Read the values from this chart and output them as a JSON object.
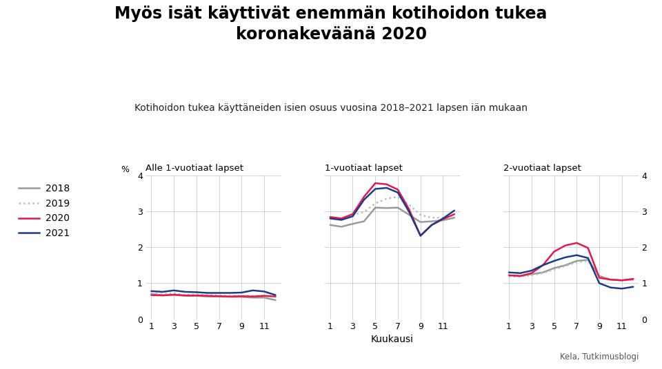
{
  "title": "Myös isät käyttivät enemmän kotihoidon tukea\nkoronakeväänä 2020",
  "subtitle": "Kotihoidon tukea käyttäneiden isien osuus vuosina 2018–2021 lapsen iän mukaan",
  "xlabel": "Kuukausi",
  "ylabel": "%",
  "source": "Kela, Tutkimusblogi",
  "months": [
    1,
    2,
    3,
    4,
    5,
    6,
    7,
    8,
    9,
    10,
    11,
    12
  ],
  "panel_titles": [
    "Alle 1-vuotiaat lapset",
    "1-vuotiaat lapset",
    "2-vuotiaat lapset"
  ],
  "ylim": [
    0,
    4
  ],
  "yticks": [
    0,
    1,
    2,
    3,
    4
  ],
  "panel1": {
    "y2018": [
      0.7,
      0.67,
      0.68,
      0.65,
      0.65,
      0.63,
      0.63,
      0.62,
      0.62,
      0.6,
      0.6,
      0.53
    ],
    "y2019": [
      0.72,
      0.7,
      0.72,
      0.68,
      0.68,
      0.67,
      0.66,
      0.65,
      0.65,
      0.65,
      0.65,
      0.62
    ],
    "y2020": [
      0.67,
      0.66,
      0.68,
      0.66,
      0.66,
      0.65,
      0.64,
      0.63,
      0.64,
      0.63,
      0.65,
      0.63
    ],
    "y2021": [
      0.78,
      0.76,
      0.8,
      0.76,
      0.75,
      0.73,
      0.73,
      0.73,
      0.74,
      0.8,
      0.77,
      0.67
    ]
  },
  "panel2": {
    "y2018": [
      2.62,
      2.57,
      2.65,
      2.72,
      3.1,
      3.09,
      3.1,
      2.9,
      2.7,
      2.72,
      2.75,
      2.82
    ],
    "y2019": [
      2.82,
      2.8,
      2.9,
      2.98,
      3.22,
      3.35,
      3.4,
      3.18,
      2.9,
      2.82,
      2.82,
      2.88
    ],
    "y2020": [
      2.84,
      2.8,
      2.92,
      3.4,
      3.78,
      3.75,
      3.6,
      3.05,
      2.32,
      2.62,
      2.78,
      2.92
    ],
    "y2021": [
      2.8,
      2.76,
      2.86,
      3.32,
      3.62,
      3.65,
      3.52,
      2.98,
      2.32,
      2.62,
      2.8,
      3.02
    ]
  },
  "panel3": {
    "y2018": [
      1.22,
      1.2,
      1.25,
      1.3,
      1.42,
      1.5,
      1.62,
      1.65,
      1.2,
      1.1,
      1.08,
      1.1
    ],
    "y2019": [
      1.18,
      1.18,
      1.22,
      1.28,
      1.38,
      1.48,
      1.58,
      1.62,
      1.18,
      1.1,
      1.08,
      1.12
    ],
    "y2020": [
      1.22,
      1.2,
      1.28,
      1.5,
      1.88,
      2.05,
      2.12,
      1.98,
      1.15,
      1.1,
      1.08,
      1.12
    ],
    "y2021": [
      1.3,
      1.28,
      1.35,
      1.5,
      1.62,
      1.72,
      1.78,
      1.7,
      1.0,
      0.88,
      0.85,
      0.9
    ]
  },
  "color_2018": "#999999",
  "color_2019": "#bbbbbb",
  "color_2020": "#e8174a",
  "color_2021": "#1a3a8c",
  "lw_main": 1.8,
  "background": "#ffffff"
}
